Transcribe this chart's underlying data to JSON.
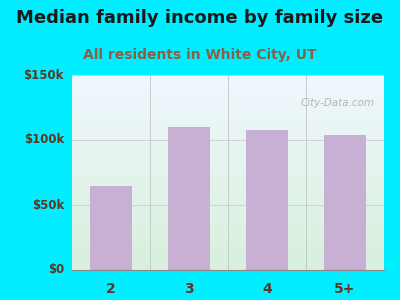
{
  "title": "Median family income by family size",
  "subtitle": "All residents in White City, UT",
  "categories": [
    "2",
    "3",
    "4",
    "5+"
  ],
  "values": [
    65000,
    110000,
    108000,
    104000
  ],
  "bar_color": "#c8afd4",
  "ylim": [
    0,
    150000
  ],
  "yticks": [
    0,
    50000,
    100000,
    150000
  ],
  "ytick_labels": [
    "$0",
    "$50k",
    "$100k",
    "$150k"
  ],
  "bg_outer": "#00eeff",
  "bg_grad_top": "#f0f8ff",
  "bg_grad_bottom": "#d8f0dc",
  "title_color": "#1a1a1a",
  "subtitle_color": "#8b6040",
  "tick_color": "#5a3820",
  "title_fontsize": 13,
  "subtitle_fontsize": 10,
  "watermark_text": "City-Data.com",
  "watermark_color": "#aaaaaa",
  "divider_color": "#bbbbbb",
  "hline_color": "#cccccc"
}
